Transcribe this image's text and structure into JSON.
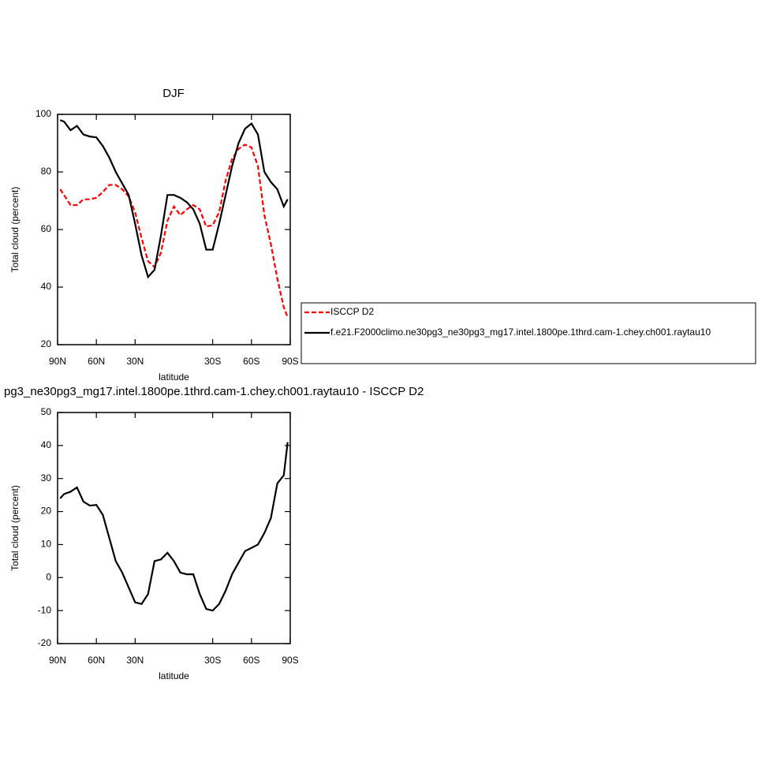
{
  "chart_data": [
    {
      "type": "line",
      "title": "DJF",
      "xlabel": "latitude",
      "ylabel": "Total cloud (percent)",
      "x": [
        88,
        85,
        80,
        75,
        70,
        65,
        60,
        55,
        50,
        45,
        40,
        35,
        30,
        25,
        20,
        15,
        10,
        5,
        0,
        -5,
        -10,
        -15,
        -20,
        -25,
        -30,
        -35,
        -40,
        -45,
        -50,
        -55,
        -60,
        -65,
        -70,
        -75,
        -80,
        -85,
        -88
      ],
      "series": [
        {
          "name": "ISCCP D2",
          "color": "#ff0000",
          "line_style": "dashed",
          "values": [
            74,
            72,
            68.5,
            68.5,
            70.5,
            70.5,
            71,
            73,
            75.5,
            75.5,
            74,
            71.5,
            66,
            57,
            49,
            47,
            52,
            63,
            68,
            65,
            67,
            68.5,
            67,
            61,
            61.5,
            66,
            77,
            84.5,
            88,
            89.5,
            88.5,
            82,
            65,
            55,
            43,
            33,
            29.5
          ]
        },
        {
          "name": "f.e21.F2000climo.ne30pg3_ne30pg3_mg17.intel.1800pe.1thrd.cam-1.chey.ch001.raytau10",
          "color": "#000000",
          "line_style": "solid",
          "values": [
            98,
            97.5,
            94.5,
            96,
            93,
            92.3,
            92,
            89,
            85,
            80,
            76,
            72,
            62,
            51,
            43.5,
            46,
            58,
            72,
            72,
            71,
            69.5,
            67,
            62,
            53,
            53,
            62,
            72,
            82,
            90,
            95,
            96.8,
            93,
            80,
            76.5,
            74,
            68,
            70.5
          ]
        }
      ],
      "xlim": [
        90,
        -90
      ],
      "xticks": [
        {
          "value": 90,
          "label": "90N"
        },
        {
          "value": 60,
          "label": "60N"
        },
        {
          "value": 30,
          "label": "30N"
        },
        {
          "value": -30,
          "label": "30S"
        },
        {
          "value": -60,
          "label": "60S"
        },
        {
          "value": -90,
          "label": "90S"
        }
      ],
      "ylim": [
        20,
        100
      ],
      "yticks": [
        20,
        40,
        60,
        80,
        100
      ],
      "legend": "outside-right"
    },
    {
      "type": "line",
      "title": "pg3_ne30pg3_mg17.intel.1800pe.1thrd.cam-1.chey.ch001.raytau10 - ISCCP D2",
      "xlabel": "latitude",
      "ylabel": "Total cloud (percent)",
      "x": [
        88,
        85,
        80,
        75,
        70,
        65,
        60,
        55,
        50,
        45,
        40,
        35,
        30,
        25,
        20,
        15,
        10,
        5,
        0,
        -5,
        -10,
        -15,
        -20,
        -25,
        -30,
        -35,
        -40,
        -45,
        -50,
        -55,
        -60,
        -65,
        -70,
        -75,
        -80,
        -85,
        -88
      ],
      "series": [
        {
          "color": "#000000",
          "line_style": "solid",
          "values": [
            24,
            25.3,
            26,
            27.3,
            23,
            21.8,
            22,
            19,
            12,
            5,
            1.5,
            -3,
            -7.5,
            -8,
            -5,
            5,
            5.5,
            7.5,
            5,
            1.5,
            1,
            1,
            -5,
            -9.5,
            -10,
            -8,
            -4,
            1,
            4.5,
            8,
            9,
            10,
            13.5,
            18,
            28.5,
            31,
            41
          ]
        }
      ],
      "xlim": [
        90,
        -90
      ],
      "xticks": [
        {
          "value": 90,
          "label": "90N"
        },
        {
          "value": 60,
          "label": "60N"
        },
        {
          "value": 30,
          "label": "30N"
        },
        {
          "value": -30,
          "label": "30S"
        },
        {
          "value": -60,
          "label": "60S"
        },
        {
          "value": -90,
          "label": "90S"
        }
      ],
      "ylim": [
        -20,
        50
      ],
      "yticks": [
        -20,
        -10,
        0,
        10,
        20,
        30,
        40,
        50
      ]
    }
  ]
}
